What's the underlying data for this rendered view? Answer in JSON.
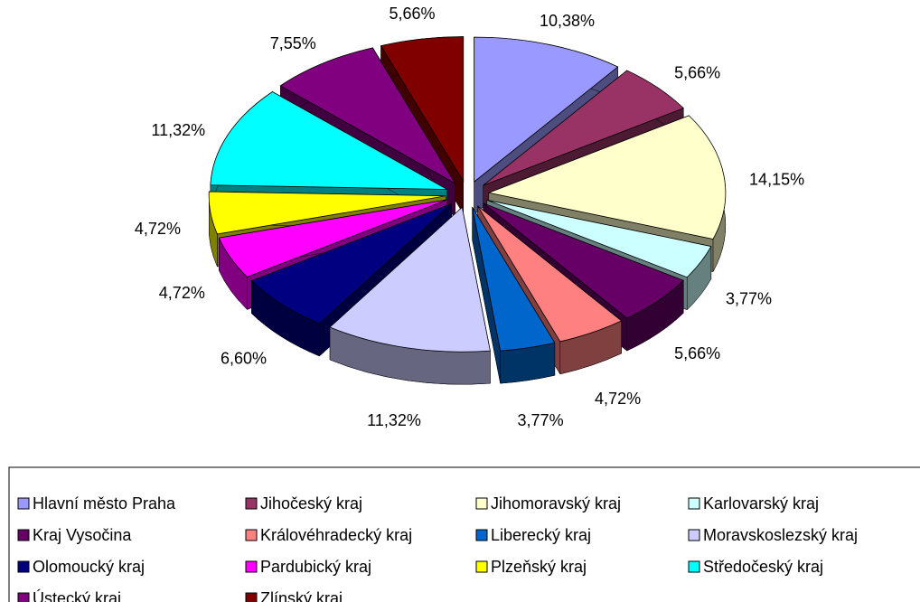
{
  "chart_data": {
    "type": "pie",
    "categories": [
      "Hlavní město Praha",
      "Jihočeský kraj",
      "Jihomoravský kraj",
      "Karlovarský kraj",
      "Kraj Vysočina",
      "Královéhradecký kraj",
      "Liberecký kraj",
      "Moravskoslezský kraj",
      "Olomoucký kraj",
      "Pardubický kraj",
      "Plzeňský kraj",
      "Středočeský kraj",
      "Ústecký kraj",
      "Zlínský kraj"
    ],
    "values": [
      10.38,
      5.66,
      14.15,
      3.77,
      5.66,
      4.72,
      3.77,
      11.32,
      6.6,
      4.72,
      4.72,
      11.32,
      7.55,
      5.66
    ],
    "value_labels": [
      "10,38%",
      "5,66%",
      "14,15%",
      "3,77%",
      "5,66%",
      "4,72%",
      "3,77%",
      "11,32%",
      "6,60%",
      "4,72%",
      "4,72%",
      "11,32%",
      "7,55%",
      "5,66%"
    ],
    "colors": [
      "#9999ff",
      "#993366",
      "#ffffcc",
      "#ccffff",
      "#660066",
      "#ff8080",
      "#0066cc",
      "#ccccff",
      "#000080",
      "#ff00ff",
      "#ffff00",
      "#00ffff",
      "#800080",
      "#800000"
    ],
    "legend": "bottom"
  }
}
